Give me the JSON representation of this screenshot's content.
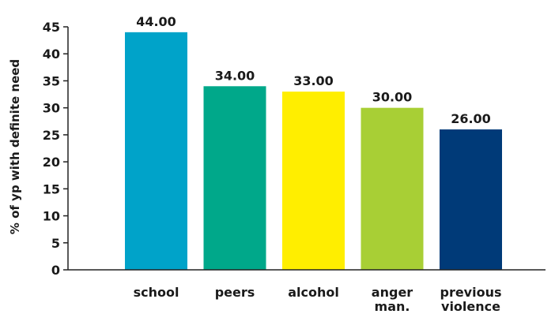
{
  "chart_data": {
    "type": "bar",
    "title": "",
    "xlabel": "",
    "ylabel": "% of yp with definite need",
    "categories": [
      "school",
      "peers",
      "alcohol",
      "anger man.",
      "previous violence"
    ],
    "category_lines": [
      [
        "school"
      ],
      [
        "peers"
      ],
      [
        "alcohol"
      ],
      [
        "anger",
        "man."
      ],
      [
        "previous",
        "violence"
      ]
    ],
    "values": [
      44.0,
      34.0,
      33.0,
      30.0,
      26.0
    ],
    "data_labels": [
      "44.00",
      "34.00",
      "33.00",
      "30.00",
      "26.00"
    ],
    "colors": [
      "#00a3c9",
      "#00a88a",
      "#ffee00",
      "#a8cf35",
      "#003a78"
    ],
    "ylim": [
      0,
      45
    ],
    "yticks": [
      0,
      5,
      10,
      15,
      20,
      25,
      30,
      35,
      40,
      45
    ],
    "grid": false,
    "legend": "none"
  }
}
